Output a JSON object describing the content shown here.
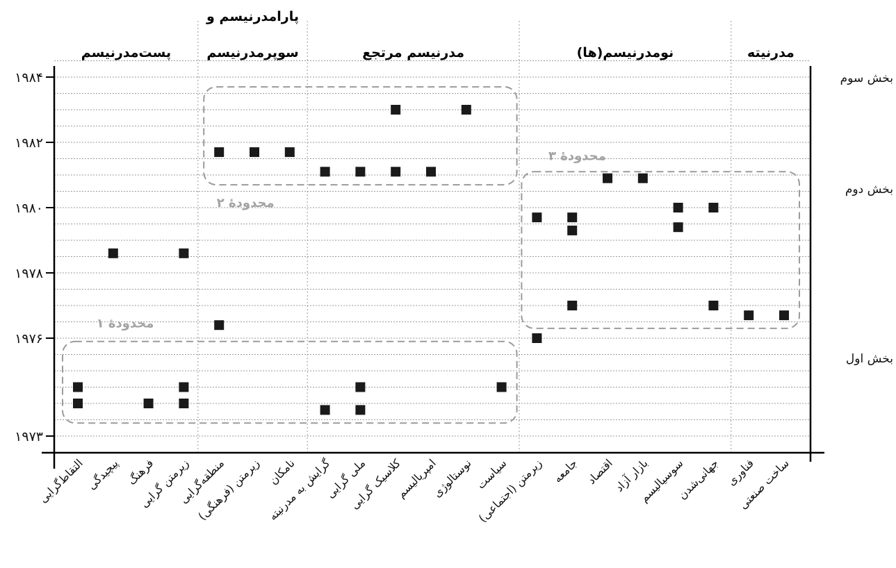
{
  "chart_data": {
    "type": "scatter",
    "title": "",
    "xlabel": "",
    "ylabel": "",
    "ylim": [
      1972.8,
      1984.8
    ],
    "grid": true,
    "y_tick_values": [
      1973,
      1976,
      1978,
      1980,
      1982,
      1984
    ],
    "y_tick_labels": [
      "۱۹۷۳",
      "۱۹۷۶",
      "۱۹۷۸",
      "۱۹۸۰",
      "۱۹۸۲",
      "۱۹۸۴"
    ],
    "categories": [
      "التقاط‌گرایی",
      "پیچیدگی",
      "فرهنگ",
      "زیرمتن گرایی",
      "منطقه‌گرایی",
      "زیرمتن (فرهنگی)",
      "نامکان",
      "گرایش به مدرنیته",
      "ملی گرایی",
      "کلاسیک گرایی",
      "امپریالیسم",
      "نوستالوژی",
      "سیاست",
      "زیرمتن (اجتماعی)",
      "جامعه",
      "اقتصاد",
      "بازار آزاد",
      "سوسیالیسم",
      "جهانی‌شدن",
      "فناوری",
      "ساخت صنعتی"
    ],
    "groups": [
      {
        "label": "پست‌مدرنیسم",
        "from": 0,
        "to": 3
      },
      {
        "label": "سوپرمدرنیسم",
        "label_top": "پارامدرنیسم و",
        "from": 4,
        "to": 6
      },
      {
        "label": "مدرنیسم مرتجع",
        "from": 7,
        "to": 12
      },
      {
        "label": "نومدرنیسم(ها)",
        "from": 13,
        "to": 18
      },
      {
        "label": "مدرنیته",
        "from": 19,
        "to": 20
      }
    ],
    "sections": [
      {
        "label": "بخش سوم",
        "y": 1984
      },
      {
        "label": "بخش دوم",
        "y": 1980.6
      },
      {
        "label": "بخش اول",
        "y": 1975.4
      }
    ],
    "regions": [
      {
        "label": "محدودهٔ ۱",
        "x_from": 0,
        "x_to": 12,
        "y_from": 1973.4,
        "y_to": 1975.9
      },
      {
        "label": "محدودهٔ ۲",
        "x_from": 4,
        "x_to": 12,
        "y_from": 1980.7,
        "y_to": 1983.7
      },
      {
        "label": "محدودهٔ ۳",
        "x_from": 13,
        "x_to": 20,
        "y_from": 1976.3,
        "y_to": 1981.1
      }
    ],
    "points": [
      {
        "x": 0,
        "y": 1974.5
      },
      {
        "x": 0,
        "y": 1974.0
      },
      {
        "x": 1,
        "y": 1978.6
      },
      {
        "x": 2,
        "y": 1974.0
      },
      {
        "x": 3,
        "y": 1978.6
      },
      {
        "x": 3,
        "y": 1974.5
      },
      {
        "x": 3,
        "y": 1974.0
      },
      {
        "x": 4,
        "y": 1976.4
      },
      {
        "x": 4,
        "y": 1981.7
      },
      {
        "x": 5,
        "y": 1981.7
      },
      {
        "x": 6,
        "y": 1981.7
      },
      {
        "x": 7,
        "y": 1981.1
      },
      {
        "x": 7,
        "y": 1973.8
      },
      {
        "x": 8,
        "y": 1981.1
      },
      {
        "x": 8,
        "y": 1974.5
      },
      {
        "x": 8,
        "y": 1973.8
      },
      {
        "x": 9,
        "y": 1983.0
      },
      {
        "x": 9,
        "y": 1981.1
      },
      {
        "x": 10,
        "y": 1981.1
      },
      {
        "x": 11,
        "y": 1983.0
      },
      {
        "x": 12,
        "y": 1974.5
      },
      {
        "x": 13,
        "y": 1979.7
      },
      {
        "x": 13,
        "y": 1976.0
      },
      {
        "x": 14,
        "y": 1979.7
      },
      {
        "x": 14,
        "y": 1979.3
      },
      {
        "x": 14,
        "y": 1977.0
      },
      {
        "x": 15,
        "y": 1980.9
      },
      {
        "x": 16,
        "y": 1980.9
      },
      {
        "x": 17,
        "y": 1980.0
      },
      {
        "x": 17,
        "y": 1979.4
      },
      {
        "x": 18,
        "y": 1980.0
      },
      {
        "x": 18,
        "y": 1977.0
      },
      {
        "x": 19,
        "y": 1976.7
      },
      {
        "x": 20,
        "y": 1976.7
      }
    ]
  }
}
